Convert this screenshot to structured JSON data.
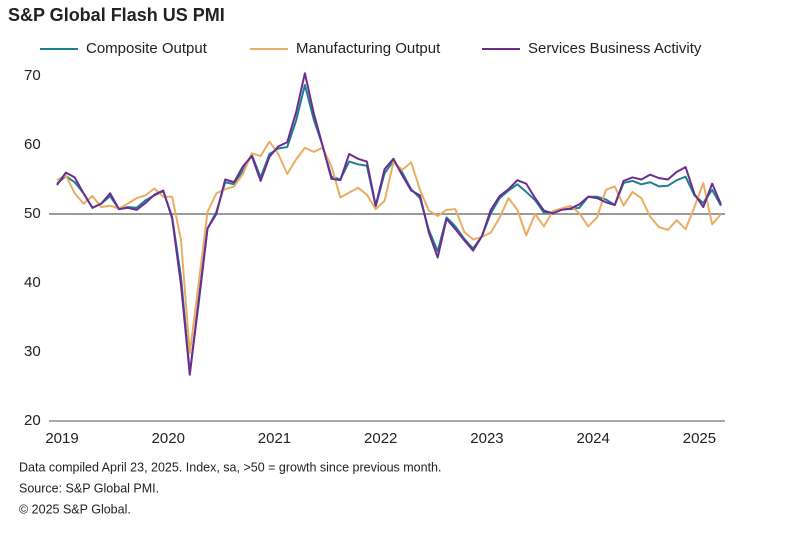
{
  "chart_data": {
    "type": "line",
    "title": "S&P Global Flash US PMI",
    "notes": [
      "Data compiled April 23, 2025. Index, sa, >50 = growth since previous month.",
      "Source: S&P Global PMI.",
      "© 2025 S&P Global."
    ],
    "categories": [
      "2019",
      null,
      null,
      null,
      null,
      null,
      null,
      null,
      null,
      null,
      null,
      null,
      "2020",
      null,
      null,
      null,
      null,
      null,
      null,
      null,
      null,
      null,
      null,
      null,
      "2021",
      null,
      null,
      null,
      null,
      null,
      null,
      null,
      null,
      null,
      null,
      null,
      "2022",
      null,
      null,
      null,
      null,
      null,
      null,
      null,
      null,
      null,
      null,
      null,
      "2023",
      null,
      null,
      null,
      null,
      null,
      null,
      null,
      null,
      null,
      null,
      null,
      "2024",
      null,
      null,
      null,
      null,
      null,
      null,
      null,
      null,
      null,
      null,
      null,
      "2025",
      null,
      null,
      null
    ],
    "series": [
      {
        "name": "Composite Output",
        "color": "#1f7f8f",
        "values": [
          54.4,
          55.5,
          54.6,
          53.0,
          50.9,
          51.5,
          52.6,
          50.7,
          51.0,
          50.9,
          52.0,
          52.7,
          53.3,
          49.6,
          40.9,
          27.0,
          37.0,
          47.9,
          50.3,
          54.6,
          54.3,
          56.3,
          58.6,
          55.3,
          58.7,
          59.5,
          59.7,
          63.5,
          68.7,
          63.7,
          59.9,
          55.4,
          55.0,
          57.6,
          57.2,
          57.0,
          51.1,
          55.9,
          57.7,
          56.0,
          53.6,
          52.3,
          47.7,
          44.6,
          49.5,
          48.2,
          46.4,
          45.0,
          46.8,
          50.1,
          52.3,
          53.4,
          54.3,
          53.2,
          52.0,
          50.2,
          50.2,
          50.7,
          50.7,
          50.9,
          52.5,
          52.5,
          52.1,
          51.3,
          54.5,
          54.8,
          54.3,
          54.6,
          54.0,
          54.1,
          54.9,
          55.4,
          52.7,
          51.6,
          53.5,
          51.2
        ]
      },
      {
        "name": "Manufacturing Output",
        "color": "#e9ad64",
        "values": [
          54.9,
          55.6,
          53.0,
          51.5,
          52.6,
          51.0,
          51.2,
          50.8,
          51.5,
          52.3,
          52.7,
          53.7,
          52.5,
          52.5,
          46.3,
          29.8,
          39.9,
          50.3,
          53.0,
          53.6,
          54.0,
          55.8,
          58.8,
          58.4,
          60.5,
          58.7,
          55.8,
          57.9,
          59.6,
          59.0,
          59.6,
          56.9,
          52.4,
          53.1,
          53.8,
          52.8,
          50.7,
          51.9,
          57.5,
          56.4,
          57.5,
          53.5,
          50.5,
          49.7,
          50.6,
          50.7,
          47.4,
          46.3,
          46.7,
          47.3,
          49.5,
          52.3,
          50.6,
          46.9,
          50.0,
          48.2,
          50.4,
          50.8,
          51.2,
          50.1,
          48.2,
          49.5,
          53.5,
          54.0,
          51.2,
          53.2,
          52.3,
          49.6,
          48.1,
          47.7,
          49.1,
          47.8,
          51.0,
          54.5,
          48.5,
          50.0
        ]
      },
      {
        "name": "Services Business Activity",
        "color": "#6b2d8f",
        "values": [
          54.2,
          56.0,
          55.3,
          53.0,
          50.9,
          51.5,
          53.0,
          50.7,
          50.9,
          50.6,
          51.6,
          52.8,
          53.4,
          49.4,
          39.8,
          26.7,
          37.5,
          47.9,
          50.0,
          55.0,
          54.6,
          56.9,
          58.4,
          54.8,
          58.3,
          59.8,
          60.4,
          64.7,
          70.4,
          64.6,
          59.9,
          55.1,
          54.9,
          58.7,
          58.0,
          57.6,
          51.2,
          56.5,
          58.0,
          55.6,
          53.4,
          52.7,
          47.3,
          43.7,
          49.3,
          47.8,
          46.2,
          44.7,
          46.8,
          50.6,
          52.6,
          53.6,
          54.9,
          54.4,
          52.3,
          50.5,
          50.1,
          50.6,
          50.8,
          51.4,
          52.5,
          52.3,
          51.7,
          51.3,
          54.8,
          55.3,
          55.0,
          55.7,
          55.2,
          55.0,
          56.1,
          56.8,
          52.9,
          51.0,
          54.4,
          51.4
        ]
      }
    ],
    "ylim": [
      20,
      70
    ],
    "yticks": [
      20,
      30,
      40,
      50,
      60,
      70
    ],
    "reference_line": 50,
    "legend": "top"
  }
}
